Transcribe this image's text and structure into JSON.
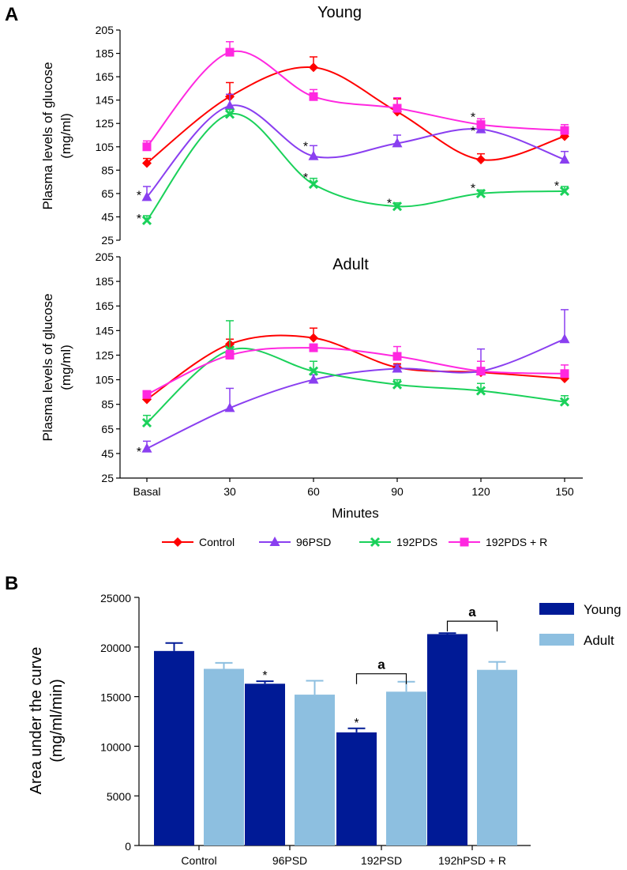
{
  "chart_data": [
    {
      "type": "line",
      "panel": "A",
      "title": "Young",
      "ylabel_line1": "Plasma levels of glucose",
      "ylabel_line2": "(mg/ml)",
      "xlabel": "",
      "categories": [
        "Basal",
        "30",
        "60",
        "90",
        "120",
        "150"
      ],
      "yticks": [
        "25",
        "45",
        "65",
        "85",
        "105",
        "125",
        "145",
        "165",
        "185",
        "205"
      ],
      "ylim": [
        25,
        205
      ],
      "series": [
        {
          "name": "Control",
          "color": "#ff0000",
          "marker": "diamond",
          "values": [
            91,
            148,
            173,
            135,
            94,
            114
          ],
          "errors": [
            4,
            12,
            9,
            11,
            5,
            3
          ]
        },
        {
          "name": "96PSD",
          "color": "#8a3ff0",
          "marker": "triangle",
          "values": [
            62,
            140,
            97,
            108,
            120,
            94
          ],
          "errors": [
            9,
            10,
            9,
            7,
            6,
            7
          ]
        },
        {
          "name": "192PDS",
          "color": "#1ad15a",
          "marker": "x",
          "values": [
            42,
            133,
            73,
            54,
            65,
            67
          ],
          "errors": [
            4,
            4,
            5,
            3,
            3,
            4
          ]
        },
        {
          "name": "192PDS + R",
          "color": "#ff28e0",
          "marker": "square",
          "values": [
            105,
            186,
            148,
            138,
            124,
            119
          ],
          "errors": [
            5,
            9,
            6,
            9,
            5,
            5
          ]
        }
      ],
      "annotations": [
        {
          "text": "*",
          "category": "Basal",
          "value": 64,
          "series": "96PSD"
        },
        {
          "text": "*",
          "category": "Basal",
          "value": 44,
          "series": "192PDS"
        },
        {
          "text": "*",
          "category": "60",
          "value": 106,
          "series": "96PSD"
        },
        {
          "text": "*",
          "category": "60",
          "value": 79,
          "series": "192PDS"
        },
        {
          "text": "*",
          "category": "90",
          "value": 57,
          "series": "192PDS"
        },
        {
          "text": "*",
          "category": "120",
          "value": 131,
          "series": "192PDS + R"
        },
        {
          "text": "*",
          "category": "120",
          "value": 119,
          "series": "96PSD"
        },
        {
          "text": "*",
          "category": "120",
          "value": 70,
          "series": "192PDS"
        },
        {
          "text": "*",
          "category": "150",
          "value": 72,
          "series": "192PDS"
        }
      ]
    },
    {
      "type": "line",
      "panel": "",
      "title": "Adult",
      "ylabel_line1": "Plasma levels of glucose",
      "ylabel_line2": "(mg/ml)",
      "xlabel": "Minutes",
      "categories": [
        "Basal",
        "30",
        "60",
        "90",
        "120",
        "150"
      ],
      "yticks": [
        "25",
        "45",
        "65",
        "85",
        "105",
        "125",
        "145",
        "165",
        "185",
        "205"
      ],
      "ylim": [
        25,
        205
      ],
      "series": [
        {
          "name": "Control",
          "color": "#ff0000",
          "marker": "diamond",
          "values": [
            89,
            134,
            139,
            115,
            111,
            106
          ],
          "errors": [
            3,
            4,
            8,
            3,
            3,
            3
          ]
        },
        {
          "name": "96PSD",
          "color": "#8a3ff0",
          "marker": "triangle",
          "values": [
            49,
            82,
            105,
            114,
            112,
            138
          ],
          "errors": [
            6,
            16,
            4,
            3,
            18,
            24
          ]
        },
        {
          "name": "192PDS",
          "color": "#1ad15a",
          "marker": "x",
          "values": [
            70,
            129,
            112,
            101,
            96,
            87
          ],
          "errors": [
            6,
            24,
            8,
            4,
            6,
            5
          ]
        },
        {
          "name": "192PDS + R",
          "color": "#ff28e0",
          "marker": "square",
          "values": [
            93,
            125,
            131,
            124,
            112,
            110
          ],
          "errors": [
            3,
            4,
            3,
            8,
            8,
            7
          ]
        }
      ],
      "annotations": [
        {
          "text": "*",
          "category": "Basal",
          "value": 47,
          "series": "96PSD"
        }
      ]
    },
    {
      "type": "bar",
      "panel": "B",
      "title": "",
      "ylabel_line1": "Area under the curve",
      "ylabel_line2": "(mg/ml/min)",
      "categories": [
        "Control",
        "96PSD",
        "192PSD",
        "192hPSD + R"
      ],
      "yticks": [
        "0",
        "5000",
        "10000",
        "15000",
        "20000",
        "25000"
      ],
      "ylim": [
        0,
        25000
      ],
      "series": [
        {
          "name": "Young",
          "color": "#001a96",
          "values": [
            19600,
            16300,
            11400,
            21300
          ],
          "errors": [
            800,
            250,
            400,
            100
          ]
        },
        {
          "name": "Adult",
          "color": "#8dbfe0",
          "values": [
            17800,
            15200,
            15500,
            17700
          ],
          "errors": [
            600,
            1400,
            1000,
            800
          ]
        }
      ],
      "annotations": [
        {
          "text": "*",
          "category": "96PSD",
          "series": "Young"
        },
        {
          "text": "*",
          "category": "192PSD",
          "series": "Young"
        },
        {
          "text": "a",
          "category": "192PSD",
          "bracket": true,
          "value": 17300
        },
        {
          "text": "a",
          "category": "192hPSD + R",
          "bracket": true,
          "value": 22600
        }
      ]
    }
  ],
  "legend_a": [
    "Control",
    "96PSD",
    "192PDS",
    "192PDS + R"
  ],
  "legend_b": [
    "Young",
    "Adult"
  ]
}
